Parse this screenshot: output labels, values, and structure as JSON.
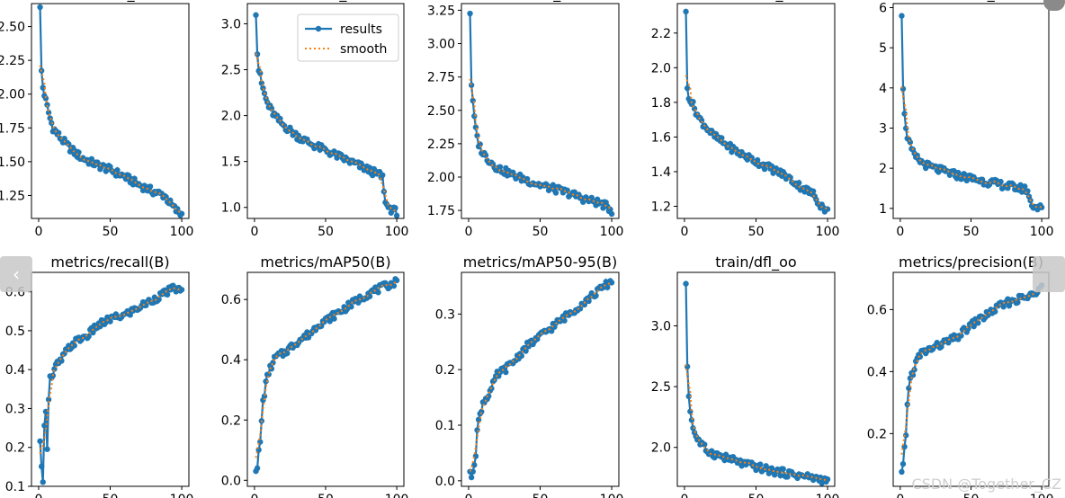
{
  "colors": {
    "results": "#1f77b4",
    "smooth": "#ff7f0e",
    "axis": "#000000"
  },
  "legend": {
    "results_label": "results",
    "smooth_label": "smooth"
  },
  "watermark": "CSDN @Together_CZ",
  "nav": {
    "prev_icon": "chevron-left-icon",
    "next_icon": "chevron-right-icon"
  },
  "chart_data": [
    {
      "type": "line",
      "title": "train/box_om",
      "x": [
        1,
        100
      ],
      "xlim": [
        -5,
        105
      ],
      "xticks": [
        0,
        50,
        100
      ],
      "ylim": [
        1.08,
        2.67
      ],
      "yticks": [
        1.25,
        1.5,
        1.75,
        2.0,
        2.25,
        2.5
      ],
      "yticklabels": [
        "1.25",
        "1.50",
        "1.75",
        "2.00",
        "2.25",
        "2.50"
      ],
      "curve": [
        [
          1,
          2.63
        ],
        [
          2,
          2.17
        ],
        [
          3,
          2.05
        ],
        [
          5,
          1.95
        ],
        [
          8,
          1.82
        ],
        [
          10,
          1.75
        ],
        [
          15,
          1.68
        ],
        [
          20,
          1.62
        ],
        [
          25,
          1.57
        ],
        [
          30,
          1.53
        ],
        [
          40,
          1.48
        ],
        [
          50,
          1.44
        ],
        [
          60,
          1.39
        ],
        [
          70,
          1.33
        ],
        [
          80,
          1.28
        ],
        [
          88,
          1.25
        ],
        [
          92,
          1.19
        ],
        [
          96,
          1.14
        ],
        [
          100,
          1.11
        ]
      ],
      "legend": false
    },
    {
      "type": "line",
      "title": "train/cls_om",
      "x": [
        1,
        100
      ],
      "xlim": [
        -5,
        105
      ],
      "xticks": [
        0,
        50,
        100
      ],
      "ylim": [
        0.88,
        3.22
      ],
      "yticks": [
        1.0,
        1.5,
        2.0,
        2.5,
        3.0
      ],
      "yticklabels": [
        "1.0",
        "1.5",
        "2.0",
        "2.5",
        "3.0"
      ],
      "curve": [
        [
          1,
          3.13
        ],
        [
          2,
          2.68
        ],
        [
          3,
          2.5
        ],
        [
          5,
          2.35
        ],
        [
          8,
          2.18
        ],
        [
          10,
          2.1
        ],
        [
          15,
          1.98
        ],
        [
          20,
          1.9
        ],
        [
          30,
          1.78
        ],
        [
          40,
          1.69
        ],
        [
          50,
          1.62
        ],
        [
          60,
          1.55
        ],
        [
          70,
          1.48
        ],
        [
          80,
          1.41
        ],
        [
          88,
          1.35
        ],
        [
          90,
          1.33
        ],
        [
          91,
          1.15
        ],
        [
          93,
          1.02
        ],
        [
          96,
          0.98
        ],
        [
          100,
          0.95
        ]
      ],
      "legend": true
    },
    {
      "type": "line",
      "title": "train/dfl_om",
      "x": [
        1,
        100
      ],
      "xlim": [
        -5,
        105
      ],
      "xticks": [
        0,
        50,
        100
      ],
      "ylim": [
        1.69,
        3.3
      ],
      "yticks": [
        1.75,
        2.0,
        2.25,
        2.5,
        2.75,
        3.0,
        3.25
      ],
      "yticklabels": [
        "1.75",
        "2.00",
        "2.25",
        "2.50",
        "2.75",
        "3.00",
        "3.25"
      ],
      "curve": [
        [
          1,
          3.23
        ],
        [
          2,
          2.7
        ],
        [
          3,
          2.55
        ],
        [
          5,
          2.35
        ],
        [
          7,
          2.25
        ],
        [
          10,
          2.18
        ],
        [
          15,
          2.12
        ],
        [
          20,
          2.07
        ],
        [
          30,
          2.02
        ],
        [
          40,
          1.98
        ],
        [
          50,
          1.94
        ],
        [
          60,
          1.91
        ],
        [
          70,
          1.88
        ],
        [
          80,
          1.84
        ],
        [
          90,
          1.81
        ],
        [
          95,
          1.79
        ],
        [
          100,
          1.75
        ]
      ],
      "legend": false
    },
    {
      "type": "line",
      "title": "train/box_oo",
      "x": [
        1,
        100
      ],
      "xlim": [
        -5,
        105
      ],
      "xticks": [
        0,
        50,
        100
      ],
      "ylim": [
        1.13,
        2.37
      ],
      "yticks": [
        1.2,
        1.4,
        1.6,
        1.8,
        2.0,
        2.2
      ],
      "yticklabels": [
        "1.2",
        "1.4",
        "1.6",
        "1.8",
        "2.0",
        "2.2"
      ],
      "curve": [
        [
          1,
          2.31
        ],
        [
          2,
          1.88
        ],
        [
          3,
          1.84
        ],
        [
          5,
          1.8
        ],
        [
          8,
          1.75
        ],
        [
          10,
          1.71
        ],
        [
          15,
          1.66
        ],
        [
          20,
          1.61
        ],
        [
          30,
          1.55
        ],
        [
          40,
          1.5
        ],
        [
          50,
          1.46
        ],
        [
          60,
          1.42
        ],
        [
          70,
          1.38
        ],
        [
          80,
          1.32
        ],
        [
          90,
          1.27
        ],
        [
          95,
          1.21
        ],
        [
          100,
          1.17
        ]
      ],
      "legend": false
    },
    {
      "type": "line",
      "title": "train/cls_oo",
      "x": [
        1,
        100
      ],
      "xlim": [
        -5,
        105
      ],
      "xticks": [
        0,
        50,
        100
      ],
      "ylim": [
        0.75,
        6.1
      ],
      "yticks": [
        1,
        2,
        3,
        4,
        5,
        6
      ],
      "yticklabels": [
        "1",
        "2",
        "3",
        "4",
        "5",
        "6"
      ],
      "curve": [
        [
          1,
          5.86
        ],
        [
          2,
          4.05
        ],
        [
          3,
          3.3
        ],
        [
          5,
          2.8
        ],
        [
          8,
          2.45
        ],
        [
          10,
          2.3
        ],
        [
          15,
          2.15
        ],
        [
          20,
          2.05
        ],
        [
          30,
          1.93
        ],
        [
          40,
          1.83
        ],
        [
          50,
          1.75
        ],
        [
          60,
          1.67
        ],
        [
          70,
          1.6
        ],
        [
          80,
          1.53
        ],
        [
          88,
          1.48
        ],
        [
          90,
          1.45
        ],
        [
          92,
          1.15
        ],
        [
          95,
          1.05
        ],
        [
          100,
          1.0
        ]
      ],
      "legend": false
    },
    {
      "type": "line",
      "title": "metrics/recall(B)",
      "x": [
        1,
        100
      ],
      "xlim": [
        -5,
        105
      ],
      "xticks": [
        0,
        50,
        100
      ],
      "ylim": [
        0.1,
        0.65
      ],
      "yticks": [
        0.1,
        0.2,
        0.3,
        0.4,
        0.5,
        0.6
      ],
      "yticklabels": [
        "0.1",
        "0.2",
        "0.3",
        "0.4",
        "0.5",
        "0.6"
      ],
      "curve": [
        [
          1,
          0.21
        ],
        [
          2,
          0.16
        ],
        [
          3,
          0.12
        ],
        [
          4,
          0.25
        ],
        [
          5,
          0.3
        ],
        [
          6,
          0.2
        ],
        [
          7,
          0.33
        ],
        [
          8,
          0.38
        ],
        [
          10,
          0.38
        ],
        [
          12,
          0.41
        ],
        [
          15,
          0.42
        ],
        [
          20,
          0.45
        ],
        [
          25,
          0.47
        ],
        [
          30,
          0.48
        ],
        [
          35,
          0.49
        ],
        [
          40,
          0.51
        ],
        [
          45,
          0.52
        ],
        [
          50,
          0.53
        ],
        [
          60,
          0.54
        ],
        [
          70,
          0.56
        ],
        [
          80,
          0.58
        ],
        [
          90,
          0.6
        ],
        [
          95,
          0.61
        ],
        [
          100,
          0.6
        ]
      ],
      "legend": false
    },
    {
      "type": "line",
      "title": "metrics/mAP50(B)",
      "x": [
        1,
        100
      ],
      "xlim": [
        -5,
        105
      ],
      "xticks": [
        0,
        50,
        100
      ],
      "ylim": [
        -0.02,
        0.69
      ],
      "yticks": [
        0.0,
        0.2,
        0.4,
        0.6
      ],
      "yticklabels": [
        "0.0",
        "0.2",
        "0.4",
        "0.6"
      ],
      "curve": [
        [
          1,
          0.04
        ],
        [
          2,
          0.03
        ],
        [
          3,
          0.1
        ],
        [
          4,
          0.12
        ],
        [
          5,
          0.2
        ],
        [
          6,
          0.26
        ],
        [
          8,
          0.32
        ],
        [
          10,
          0.36
        ],
        [
          12,
          0.38
        ],
        [
          15,
          0.41
        ],
        [
          20,
          0.42
        ],
        [
          25,
          0.44
        ],
        [
          30,
          0.46
        ],
        [
          40,
          0.49
        ],
        [
          45,
          0.52
        ],
        [
          50,
          0.53
        ],
        [
          60,
          0.56
        ],
        [
          70,
          0.59
        ],
        [
          80,
          0.62
        ],
        [
          90,
          0.64
        ],
        [
          100,
          0.66
        ]
      ],
      "legend": false
    },
    {
      "type": "line",
      "title": "metrics/mAP50-95(B)",
      "x": [
        1,
        100
      ],
      "xlim": [
        -5,
        105
      ],
      "xticks": [
        0,
        50,
        100
      ],
      "ylim": [
        -0.01,
        0.375
      ],
      "yticks": [
        0.0,
        0.1,
        0.2,
        0.3
      ],
      "yticklabels": [
        "0.0",
        "0.1",
        "0.2",
        "0.3"
      ],
      "curve": [
        [
          1,
          0.01
        ],
        [
          2,
          0.01
        ],
        [
          3,
          0.02
        ],
        [
          5,
          0.05
        ],
        [
          6,
          0.09
        ],
        [
          8,
          0.12
        ],
        [
          10,
          0.14
        ],
        [
          15,
          0.16
        ],
        [
          20,
          0.19
        ],
        [
          25,
          0.2
        ],
        [
          30,
          0.21
        ],
        [
          40,
          0.24
        ],
        [
          50,
          0.26
        ],
        [
          60,
          0.28
        ],
        [
          70,
          0.3
        ],
        [
          80,
          0.32
        ],
        [
          90,
          0.34
        ],
        [
          100,
          0.36
        ]
      ],
      "legend": false
    },
    {
      "type": "line",
      "title": "train/dfl_oo",
      "x": [
        1,
        100
      ],
      "xlim": [
        -5,
        105
      ],
      "xticks": [
        0,
        50,
        100
      ],
      "ylim": [
        1.68,
        3.44
      ],
      "yticks": [
        2.0,
        2.5,
        3.0
      ],
      "yticklabels": [
        "2.0",
        "2.5",
        "3.0"
      ],
      "curve": [
        [
          1,
          3.36
        ],
        [
          2,
          2.67
        ],
        [
          3,
          2.42
        ],
        [
          5,
          2.22
        ],
        [
          7,
          2.12
        ],
        [
          10,
          2.05
        ],
        [
          15,
          1.98
        ],
        [
          20,
          1.95
        ],
        [
          30,
          1.91
        ],
        [
          40,
          1.87
        ],
        [
          50,
          1.84
        ],
        [
          60,
          1.81
        ],
        [
          70,
          1.79
        ],
        [
          80,
          1.77
        ],
        [
          90,
          1.75
        ],
        [
          95,
          1.74
        ],
        [
          100,
          1.72
        ]
      ],
      "legend": false
    },
    {
      "type": "line",
      "title": "metrics/precision(B)",
      "x": [
        1,
        100
      ],
      "xlim": [
        -5,
        105
      ],
      "xticks": [
        0,
        50,
        100
      ],
      "ylim": [
        0.03,
        0.72
      ],
      "yticks": [
        0.2,
        0.4,
        0.6
      ],
      "yticklabels": [
        "0.2",
        "0.4",
        "0.6"
      ],
      "curve": [
        [
          1,
          0.07
        ],
        [
          2,
          0.09
        ],
        [
          3,
          0.15
        ],
        [
          4,
          0.2
        ],
        [
          5,
          0.3
        ],
        [
          7,
          0.38
        ],
        [
          10,
          0.41
        ],
        [
          12,
          0.44
        ],
        [
          15,
          0.46
        ],
        [
          20,
          0.47
        ],
        [
          25,
          0.48
        ],
        [
          30,
          0.49
        ],
        [
          40,
          0.51
        ],
        [
          45,
          0.53
        ],
        [
          50,
          0.55
        ],
        [
          60,
          0.58
        ],
        [
          70,
          0.61
        ],
        [
          80,
          0.63
        ],
        [
          90,
          0.64
        ],
        [
          95,
          0.65
        ],
        [
          100,
          0.69
        ]
      ],
      "legend": false
    }
  ]
}
